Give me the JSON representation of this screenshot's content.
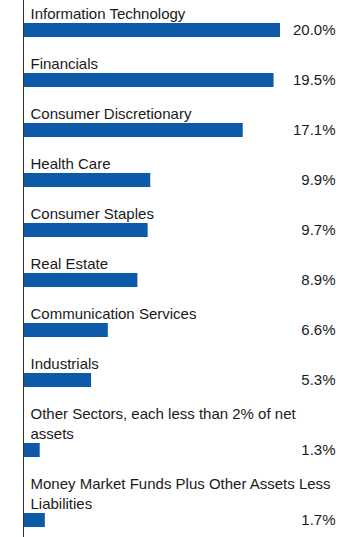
{
  "chart_data": {
    "type": "bar",
    "orientation": "horizontal",
    "categories": [
      "Information Technology",
      "Financials",
      "Consumer Discretionary",
      "Health Care",
      "Consumer Staples",
      "Real Estate",
      "Communication Services",
      "Industrials",
      "Other Sectors, each less than 2% of net assets",
      "Money Market Funds Plus Other Assets Less Liabilities"
    ],
    "values": [
      20.0,
      19.5,
      17.1,
      9.9,
      9.7,
      8.9,
      6.6,
      5.3,
      1.3,
      1.7
    ],
    "value_labels": [
      "20.0%",
      "19.5%",
      "17.1%",
      "9.9%",
      "9.7%",
      "8.9%",
      "6.6%",
      "5.3%",
      "1.3%",
      "1.7%"
    ],
    "color": "#0d5ba8",
    "data_labels": true,
    "tick_labels": false
  }
}
